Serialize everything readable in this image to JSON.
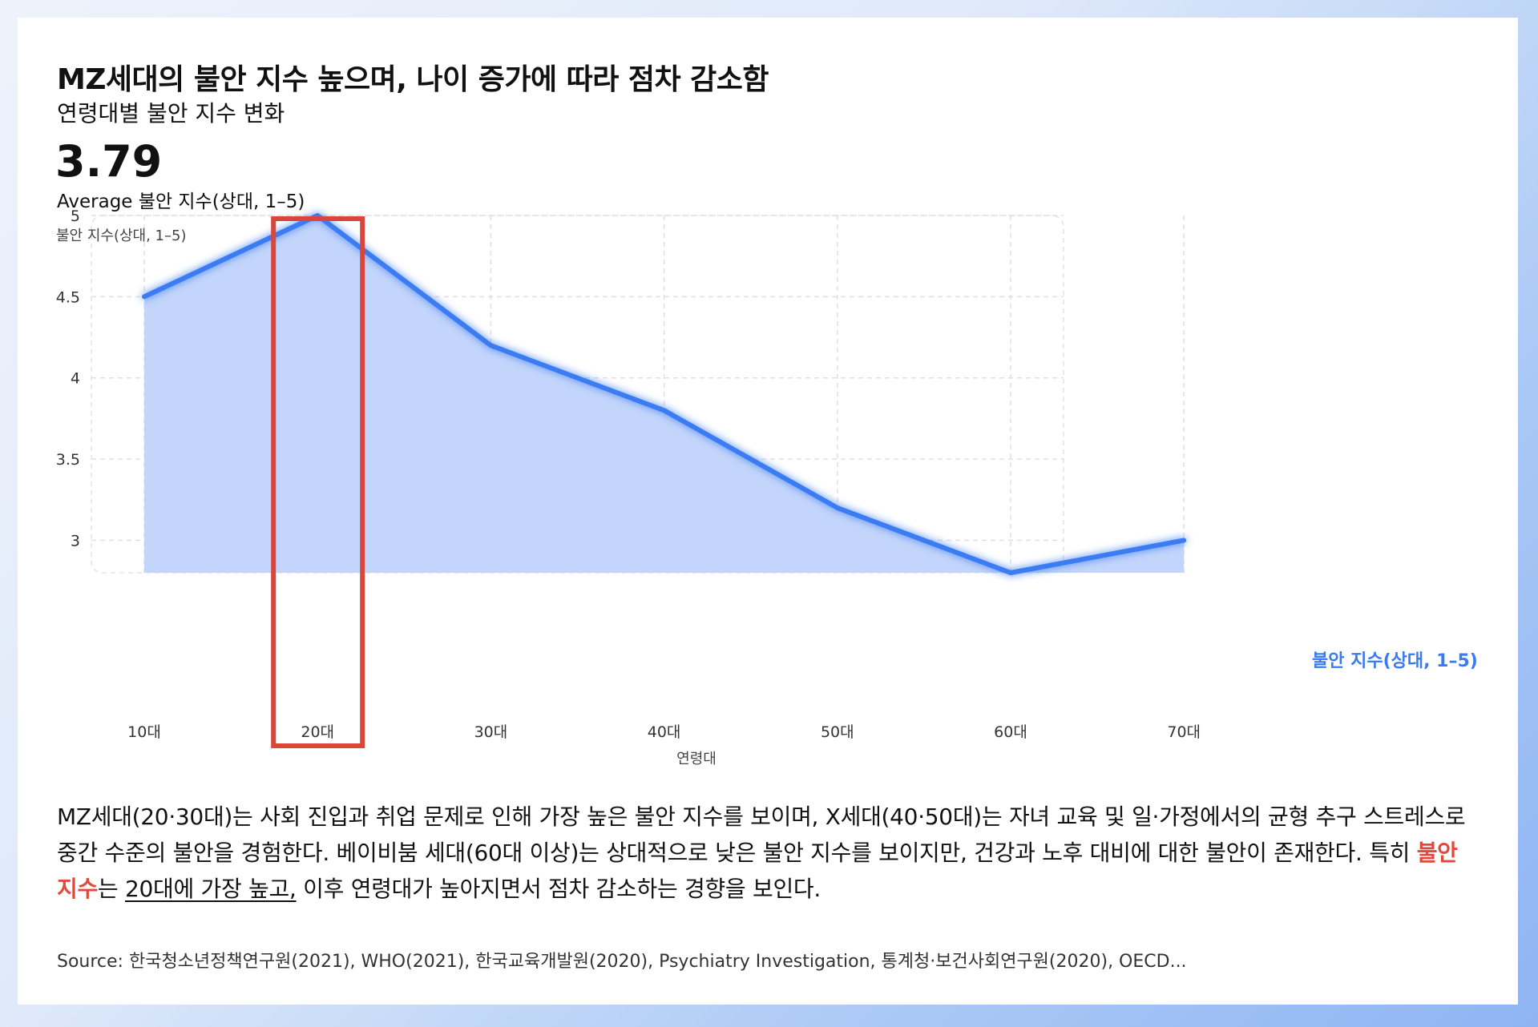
{
  "title": "MZ세대의 불안 지수 높으며, 나이 증가에 따라 점차 감소함",
  "subtitle": "연령대별 불안 지수 변화",
  "kpi": {
    "value": "3.79",
    "label": "Average 불안 지수(상대, 1–5)"
  },
  "description": {
    "part1": "MZ세대(20·30대)는 사회 진입과 취업 문제로 인해 가장 높은 불안 지수를 보이며, X세대(40·50대)는 자녀 교육 및 일·가정에서의 균형 추구 스트레스로 중간 수준의 불안을 경험한다. 베이비붐 세대(60대 이상)는 상대적으로 낮은 불안 지수를 보이지만, 건강과 노후 대비에 대한 불안이 존재한다. 특히 ",
    "highlight": "불안 지수",
    "part2": "는 ",
    "underline": "20대에 가장 높고,",
    "part3": " 이후 연령대가 높아지면서 점차 감소하는 경향을 보인다."
  },
  "source": "Source: 한국청소년정책연구원(2021), WHO(2021), 한국교육개발원(2020), Psychiatry Investigation, 통계청·보건사회연구원(2020), OECD...",
  "colors": {
    "line": "#3b7bf2",
    "area": "#c3d5fa",
    "highlight_box": "#d9463b",
    "highlight_text": "#e04a3c"
  },
  "chart_data": {
    "type": "area",
    "categories": [
      "10대",
      "20대",
      "30대",
      "40대",
      "50대",
      "60대",
      "70대"
    ],
    "series": [
      {
        "name": "불안 지수(상대, 1–5)",
        "values": [
          4.5,
          5.0,
          4.2,
          3.8,
          3.2,
          2.8,
          3.0
        ]
      }
    ],
    "ylabel": "불안 지수(상대, 1–5)",
    "xlabel": "연령대",
    "yticks": [
      3,
      3.5,
      4,
      4.5,
      5
    ],
    "ylim": [
      2.8,
      5.0
    ],
    "grid": true,
    "legend": "right, at end of line",
    "highlight_category": "20대"
  }
}
